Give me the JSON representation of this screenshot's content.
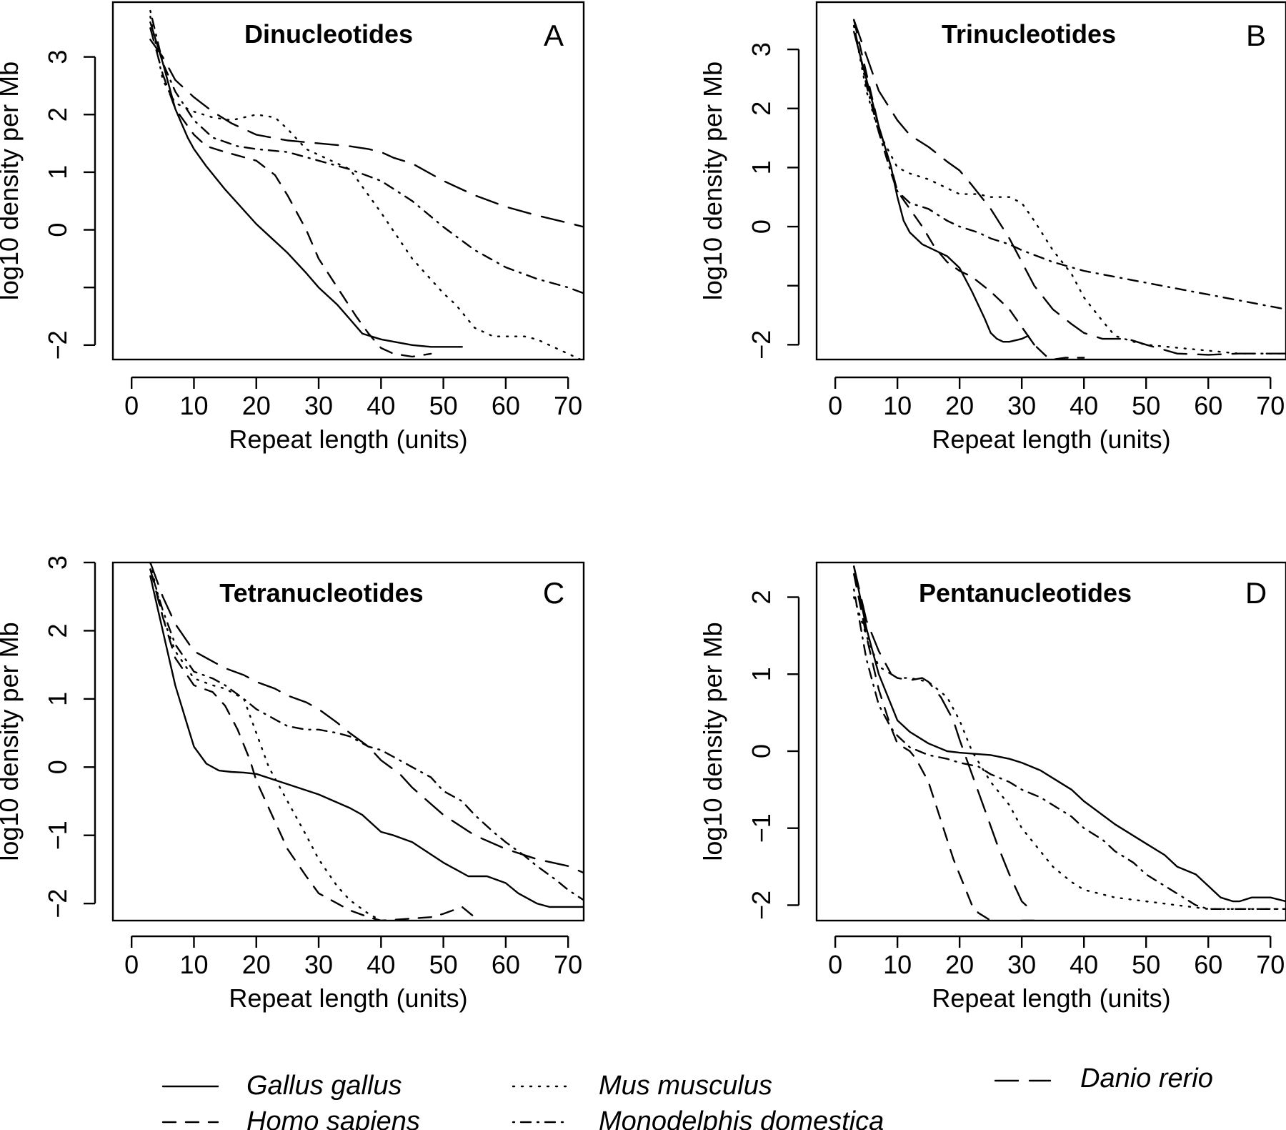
{
  "legend": [
    {
      "name": "Gallus gallus",
      "dash": "solid"
    },
    {
      "name": "Homo sapiens",
      "dash": "dashed"
    },
    {
      "name": "Mus musculus",
      "dash": "dotted"
    },
    {
      "name": "Monodelphis domestica",
      "dash": "dotdash"
    },
    {
      "name": "Danio rerio",
      "dash": "longdash"
    }
  ],
  "chart_data": [
    {
      "type": "line",
      "panel": "A",
      "title": "Dinucleotides",
      "xlabel": "Repeat length (units)",
      "ylabel": "log10 density per Mb",
      "xlim": [
        -3,
        72.5
      ],
      "ylim": [
        -2.25,
        3.95
      ],
      "xticks": [
        0,
        10,
        20,
        30,
        40,
        50,
        60,
        70
      ],
      "yticks": [
        -2,
        -1,
        0,
        1,
        2,
        3
      ],
      "ytick_labels": [
        "−2",
        "",
        "0",
        "1",
        "2",
        "3"
      ],
      "series": [
        {
          "name": "Gallus gallus",
          "x": [
            3,
            5,
            7,
            9,
            10,
            12,
            15,
            20,
            25,
            28,
            30,
            33,
            35,
            37,
            40,
            45,
            48,
            50,
            53
          ],
          "y": [
            3.6,
            2.9,
            2.1,
            1.6,
            1.4,
            1.1,
            0.7,
            0.1,
            -0.4,
            -0.75,
            -1.0,
            -1.3,
            -1.55,
            -1.8,
            -1.9,
            -2.0,
            -2.03,
            -2.03,
            -2.03
          ]
        },
        {
          "name": "Homo sapiens",
          "x": [
            3,
            5,
            7,
            10,
            12,
            15,
            20,
            23,
            25,
            28,
            30,
            33,
            36,
            38,
            40,
            42,
            45,
            48
          ],
          "y": [
            3.5,
            2.7,
            2.1,
            1.65,
            1.45,
            1.35,
            1.2,
            0.95,
            0.6,
            0.0,
            -0.5,
            -1.0,
            -1.5,
            -1.8,
            -2.05,
            -2.15,
            -2.2,
            -2.15
          ]
        },
        {
          "name": "Mus musculus",
          "x": [
            3,
            5,
            7,
            10,
            13,
            16,
            20,
            23,
            25,
            28,
            30,
            35,
            40,
            45,
            50,
            52,
            55,
            58,
            60,
            63,
            65,
            68,
            70,
            72
          ],
          "y": [
            3.7,
            2.6,
            2.2,
            2.05,
            1.95,
            1.9,
            2.0,
            1.95,
            1.75,
            1.4,
            1.3,
            1.05,
            0.3,
            -0.5,
            -1.1,
            -1.3,
            -1.7,
            -1.85,
            -1.85,
            -1.85,
            -1.9,
            -2.05,
            -2.15,
            -2.25
          ]
        },
        {
          "name": "Monodelphis domestica",
          "x": [
            3,
            5,
            7,
            10,
            13,
            17,
            20,
            25,
            30,
            35,
            40,
            45,
            50,
            55,
            60,
            65,
            70,
            72.5
          ],
          "y": [
            3.8,
            2.9,
            2.4,
            1.9,
            1.6,
            1.45,
            1.4,
            1.35,
            1.2,
            1.05,
            0.85,
            0.5,
            0.05,
            -0.35,
            -0.65,
            -0.85,
            -1.0,
            -1.1
          ]
        },
        {
          "name": "Danio rerio",
          "x": [
            3,
            5,
            7,
            10,
            13,
            16,
            20,
            25,
            30,
            35,
            38,
            40,
            42,
            45,
            50,
            55,
            60,
            65,
            70,
            72.5
          ],
          "y": [
            3.3,
            3.0,
            2.6,
            2.3,
            2.05,
            1.85,
            1.65,
            1.55,
            1.5,
            1.45,
            1.4,
            1.35,
            1.25,
            1.15,
            0.85,
            0.6,
            0.4,
            0.25,
            0.12,
            0.05
          ]
        }
      ]
    },
    {
      "type": "line",
      "panel": "B",
      "title": "Trinucleotides",
      "xlabel": "Repeat length (units)",
      "ylabel": "log10 density per Mb",
      "xlim": [
        -3,
        72.5
      ],
      "ylim": [
        -2.25,
        3.8
      ],
      "xticks": [
        0,
        10,
        20,
        30,
        40,
        50,
        60,
        70
      ],
      "yticks": [
        -2,
        -1,
        0,
        1,
        2,
        3
      ],
      "ytick_labels": [
        "−2",
        "",
        "0",
        "1",
        "2",
        "3"
      ],
      "series": [
        {
          "name": "Gallus gallus",
          "x": [
            3,
            5,
            7,
            9,
            10,
            11,
            12,
            14,
            16,
            18,
            20,
            22,
            24,
            25,
            26,
            27,
            28,
            30,
            31,
            32
          ],
          "y": [
            3.3,
            2.5,
            1.7,
            1.0,
            0.5,
            0.1,
            -0.1,
            -0.3,
            -0.4,
            -0.5,
            -0.7,
            -1.1,
            -1.55,
            -1.8,
            -1.9,
            -1.95,
            -1.95,
            -1.9,
            -1.85,
            -2.0
          ]
        },
        {
          "name": "Homo sapiens",
          "x": [
            3,
            5,
            7,
            9,
            10,
            12,
            14,
            16,
            18,
            20,
            22,
            25,
            28,
            30,
            32,
            34,
            35,
            37,
            40
          ],
          "y": [
            3.5,
            2.6,
            1.7,
            1.0,
            0.6,
            0.3,
            0.0,
            -0.35,
            -0.6,
            -0.75,
            -0.85,
            -1.1,
            -1.4,
            -1.7,
            -2.0,
            -2.2,
            -2.25,
            -2.22,
            -2.22
          ]
        },
        {
          "name": "Mus musculus",
          "x": [
            3,
            5,
            7,
            9,
            10,
            12,
            15,
            18,
            20,
            23,
            25,
            28,
            30,
            32,
            35,
            38,
            40,
            43,
            45,
            48,
            50,
            55,
            60,
            65,
            70,
            72.5
          ],
          "y": [
            3.4,
            2.3,
            1.6,
            1.2,
            1.0,
            0.9,
            0.8,
            0.65,
            0.55,
            0.55,
            0.5,
            0.5,
            0.4,
            0.1,
            -0.4,
            -0.8,
            -1.2,
            -1.6,
            -1.85,
            -1.95,
            -2.0,
            -2.05,
            -2.1,
            -2.15,
            -2.15,
            -2.15
          ]
        },
        {
          "name": "Monodelphis domestica",
          "x": [
            3,
            5,
            7,
            9,
            10,
            12,
            15,
            18,
            20,
            23,
            25,
            28,
            30,
            35,
            40,
            50,
            60,
            70,
            72.5
          ],
          "y": [
            3.4,
            2.4,
            1.6,
            0.9,
            0.6,
            0.4,
            0.3,
            0.1,
            0.0,
            -0.1,
            -0.2,
            -0.3,
            -0.4,
            -0.6,
            -0.75,
            -0.95,
            -1.15,
            -1.35,
            -1.4
          ]
        },
        {
          "name": "Danio rerio",
          "x": [
            3,
            5,
            7,
            10,
            12,
            15,
            18,
            20,
            22,
            25,
            28,
            30,
            32,
            35,
            38,
            40,
            43,
            45,
            47,
            50,
            55,
            60,
            65,
            72.5
          ],
          "y": [
            3.5,
            2.9,
            2.3,
            1.8,
            1.55,
            1.35,
            1.1,
            0.95,
            0.7,
            0.3,
            -0.2,
            -0.6,
            -1.0,
            -1.4,
            -1.65,
            -1.8,
            -1.9,
            -1.9,
            -1.9,
            -2.0,
            -2.15,
            -2.17,
            -2.15,
            -2.15
          ]
        }
      ]
    },
    {
      "type": "line",
      "panel": "C",
      "title": "Tetranucleotides",
      "xlabel": "Repeat length (units)",
      "ylabel": "log10 density per Mb",
      "xlim": [
        -3,
        72.5
      ],
      "ylim": [
        -2.25,
        3.0
      ],
      "xticks": [
        0,
        10,
        20,
        30,
        40,
        50,
        60,
        70
      ],
      "yticks": [
        -2,
        -1,
        0,
        1,
        2,
        3
      ],
      "ytick_labels": [
        "−2",
        "−1",
        "0",
        "1",
        "2",
        "3"
      ],
      "series": [
        {
          "name": "Gallus gallus",
          "x": [
            3,
            5,
            7,
            9,
            10,
            12,
            14,
            16,
            18,
            20,
            25,
            30,
            35,
            37,
            40,
            42,
            45,
            50,
            54,
            55,
            57,
            60,
            62,
            65,
            67,
            70,
            72.5
          ],
          "y": [
            2.8,
            2.0,
            1.2,
            0.6,
            0.3,
            0.05,
            -0.05,
            -0.07,
            -0.08,
            -0.1,
            -0.25,
            -0.4,
            -0.6,
            -0.7,
            -0.95,
            -1.0,
            -1.1,
            -1.4,
            -1.6,
            -1.6,
            -1.6,
            -1.7,
            -1.85,
            -2.0,
            -2.05,
            -2.05,
            -2.05
          ]
        },
        {
          "name": "Homo sapiens",
          "x": [
            3,
            5,
            7,
            10,
            13,
            15,
            17,
            19,
            20,
            22,
            25,
            28,
            30,
            33,
            35,
            38,
            40,
            45,
            48,
            50,
            53,
            55
          ],
          "y": [
            2.9,
            2.2,
            1.6,
            1.2,
            1.1,
            0.9,
            0.55,
            0.1,
            -0.2,
            -0.6,
            -1.2,
            -1.6,
            -1.85,
            -2.0,
            -2.1,
            -2.2,
            -2.25,
            -2.22,
            -2.2,
            -2.15,
            -2.05,
            -2.2
          ]
        },
        {
          "name": "Mus musculus",
          "x": [
            3,
            5,
            7,
            10,
            13,
            15,
            18,
            20,
            22,
            25,
            28,
            30,
            33,
            35,
            38,
            40
          ],
          "y": [
            3.0,
            2.2,
            1.7,
            1.3,
            1.2,
            1.15,
            1.0,
            0.5,
            0.0,
            -0.5,
            -1.0,
            -1.35,
            -1.75,
            -1.95,
            -2.15,
            -2.25
          ]
        },
        {
          "name": "Monodelphis domestica",
          "x": [
            3,
            5,
            7,
            10,
            13,
            15,
            18,
            20,
            23,
            25,
            28,
            30,
            33,
            35,
            38,
            40,
            43,
            45,
            48,
            50,
            53,
            55,
            58,
            60,
            63,
            65,
            68,
            70,
            72.5
          ],
          "y": [
            2.9,
            2.3,
            1.8,
            1.4,
            1.3,
            1.2,
            1.0,
            0.85,
            0.7,
            0.6,
            0.55,
            0.55,
            0.5,
            0.45,
            0.3,
            0.25,
            0.1,
            0.0,
            -0.15,
            -0.35,
            -0.5,
            -0.7,
            -0.95,
            -1.1,
            -1.3,
            -1.45,
            -1.65,
            -1.8,
            -1.95
          ]
        },
        {
          "name": "Danio rerio",
          "x": [
            3,
            5,
            7,
            10,
            13,
            15,
            18,
            20,
            23,
            25,
            28,
            30,
            33,
            35,
            38,
            40,
            43,
            45,
            50,
            55,
            60,
            65,
            70,
            72.5
          ],
          "y": [
            3.0,
            2.5,
            2.1,
            1.7,
            1.55,
            1.45,
            1.35,
            1.25,
            1.15,
            1.05,
            0.95,
            0.85,
            0.65,
            0.5,
            0.3,
            0.1,
            -0.1,
            -0.3,
            -0.7,
            -1.0,
            -1.2,
            -1.35,
            -1.45,
            -1.55
          ]
        }
      ]
    },
    {
      "type": "line",
      "panel": "D",
      "title": "Pentanucleotides",
      "xlabel": "Repeat length (units)",
      "ylabel": "log10 density per Mb",
      "xlim": [
        -3,
        72.5
      ],
      "ylim": [
        -2.2,
        2.45
      ],
      "xticks": [
        0,
        10,
        20,
        30,
        40,
        50,
        60,
        70
      ],
      "yticks": [
        -2,
        -1,
        0,
        1,
        2
      ],
      "ytick_labels": [
        "−2",
        "−1",
        "0",
        "1",
        "2"
      ],
      "series": [
        {
          "name": "Gallus gallus",
          "x": [
            3,
            5,
            7,
            9,
            10,
            12,
            15,
            18,
            20,
            25,
            28,
            30,
            33,
            35,
            38,
            40,
            45,
            50,
            53,
            55,
            58,
            60,
            62,
            64,
            65,
            67,
            70,
            72.5
          ],
          "y": [
            2.4,
            1.6,
            1.0,
            0.6,
            0.4,
            0.25,
            0.1,
            0.0,
            -0.02,
            -0.05,
            -0.1,
            -0.15,
            -0.25,
            -0.35,
            -0.5,
            -0.65,
            -0.95,
            -1.2,
            -1.35,
            -1.5,
            -1.6,
            -1.75,
            -1.9,
            -1.95,
            -1.95,
            -1.9,
            -1.9,
            -1.95
          ]
        },
        {
          "name": "Homo sapiens",
          "x": [
            3,
            5,
            7,
            9,
            10,
            12,
            13,
            15,
            17,
            19,
            21,
            22,
            23,
            25,
            28,
            30,
            32
          ],
          "y": [
            2.3,
            1.5,
            0.8,
            0.3,
            0.1,
            0.0,
            -0.1,
            -0.4,
            -0.9,
            -1.4,
            -1.8,
            -2.0,
            -2.1,
            -2.2,
            -2.22,
            -2.2,
            -2.2
          ]
        },
        {
          "name": "Mus musculus",
          "x": [
            3,
            5,
            7,
            9,
            10,
            12,
            15,
            18,
            20,
            22,
            25,
            28,
            30,
            33,
            35,
            38,
            40,
            45,
            50,
            55,
            60,
            70,
            72.5
          ],
          "y": [
            2.0,
            1.5,
            1.1,
            1.0,
            0.95,
            0.95,
            0.9,
            0.7,
            0.4,
            0.0,
            -0.4,
            -0.7,
            -1.0,
            -1.3,
            -1.5,
            -1.7,
            -1.8,
            -1.9,
            -1.95,
            -2.0,
            -2.05,
            -2.05,
            -2.05
          ]
        },
        {
          "name": "Monodelphis domestica",
          "x": [
            3,
            5,
            7,
            9,
            10,
            12,
            15,
            18,
            20,
            23,
            25,
            28,
            30,
            33,
            35,
            38,
            40,
            43,
            45,
            48,
            50,
            53,
            55,
            58,
            60,
            65,
            70,
            72.5
          ],
          "y": [
            2.1,
            1.2,
            0.6,
            0.3,
            0.2,
            0.05,
            -0.05,
            -0.1,
            -0.15,
            -0.2,
            -0.3,
            -0.4,
            -0.5,
            -0.6,
            -0.7,
            -0.85,
            -1.0,
            -1.15,
            -1.3,
            -1.45,
            -1.6,
            -1.75,
            -1.85,
            -2.0,
            -2.05,
            -2.05,
            -2.05,
            -2.05
          ]
        },
        {
          "name": "Danio rerio",
          "x": [
            3,
            5,
            7,
            9,
            10,
            12,
            14,
            15,
            17,
            19,
            20,
            22,
            24,
            26,
            28,
            30,
            32
          ],
          "y": [
            2.4,
            1.7,
            1.3,
            1.0,
            0.95,
            0.92,
            0.95,
            0.9,
            0.7,
            0.4,
            0.15,
            -0.3,
            -0.75,
            -1.2,
            -1.6,
            -1.95,
            -2.1
          ]
        }
      ]
    }
  ]
}
